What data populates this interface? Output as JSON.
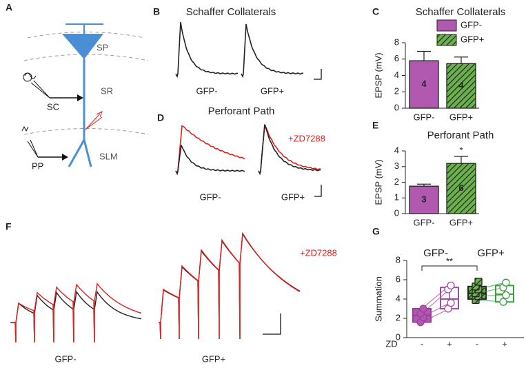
{
  "panel_labels": [
    "A",
    "B",
    "C",
    "D",
    "E",
    "F",
    "G"
  ],
  "diagram": {
    "layers": [
      "SP",
      "SR",
      "SLM"
    ],
    "inputs": [
      "SC",
      "PP"
    ]
  },
  "traces": {
    "B": {
      "title": "Schaffer Collaterals",
      "labels": [
        "GFP-",
        "GFP+"
      ]
    },
    "D": {
      "title": "Perforant Path",
      "labels": [
        "GFP-",
        "GFP+"
      ],
      "drug": "+ZD7288"
    },
    "F": {
      "labels": [
        "GFP-",
        "GFP+"
      ],
      "drug": "+ZD7288"
    }
  },
  "chart_data": [
    {
      "type": "bar",
      "title": "Schaffer Collaterals",
      "ylabel": "EPSP (mV)",
      "categories": [
        "GFP-",
        "GFP+"
      ],
      "values": [
        5.8,
        5.45
      ],
      "errors": [
        1.15,
        0.8
      ],
      "n": [
        4,
        4
      ],
      "colors": [
        "#b159b1",
        "#6ab04c"
      ],
      "hatch": [
        false,
        true
      ],
      "ylim": [
        0,
        8
      ],
      "yticks": [
        0,
        2,
        4,
        6,
        8
      ],
      "legend": "upper right"
    },
    {
      "type": "bar",
      "title": "Perforant Path",
      "ylabel": "EPSP (mV)",
      "categories": [
        "GFP-",
        "GFP+"
      ],
      "values": [
        1.75,
        3.2
      ],
      "errors": [
        0.13,
        0.45
      ],
      "n": [
        3,
        6
      ],
      "colors": [
        "#b159b1",
        "#6ab04c"
      ],
      "hatch": [
        false,
        true
      ],
      "ylim": [
        0,
        4
      ],
      "yticks": [
        0,
        1,
        2,
        3,
        4
      ],
      "annotation": "*"
    },
    {
      "type": "box",
      "ylabel": "Summation",
      "xlabel": "ZD",
      "groups": [
        "GFP-",
        "GFP+"
      ],
      "categories": [
        "-",
        "+",
        "-",
        "+"
      ],
      "boxes": [
        {
          "min": 1.5,
          "q1": 1.6,
          "median": 2.3,
          "q3": 3.0,
          "max": 3.1,
          "points": [
            1.6,
            2.1,
            2.5,
            3.0
          ],
          "color": "#9b3d9b",
          "fill": "#b159b1",
          "hatch": false
        },
        {
          "min": 3.0,
          "q1": 3.0,
          "median": 4.0,
          "q3": 5.2,
          "max": 5.5,
          "points": [
            3.0,
            3.6,
            5.0,
            5.4
          ],
          "color": "#a847a8",
          "fill": "none",
          "hatch": false
        },
        {
          "min": 3.8,
          "q1": 4.0,
          "median": 4.6,
          "q3": 5.3,
          "max": 5.9,
          "points": [
            3.9,
            4.3,
            4.6,
            5.0,
            5.3,
            5.8
          ],
          "color": "#222222",
          "fill": "#6ab04c",
          "hatch": true
        },
        {
          "min": 3.6,
          "q1": 3.7,
          "median": 4.5,
          "q3": 5.4,
          "max": 5.8,
          "points": [
            3.7,
            4.4,
            5.2,
            5.7
          ],
          "color": "#3aa040",
          "fill": "none",
          "hatch": false
        }
      ],
      "ylim": [
        0,
        8
      ],
      "yticks": [
        0,
        2,
        4,
        6,
        8
      ],
      "annotation": "**"
    }
  ]
}
